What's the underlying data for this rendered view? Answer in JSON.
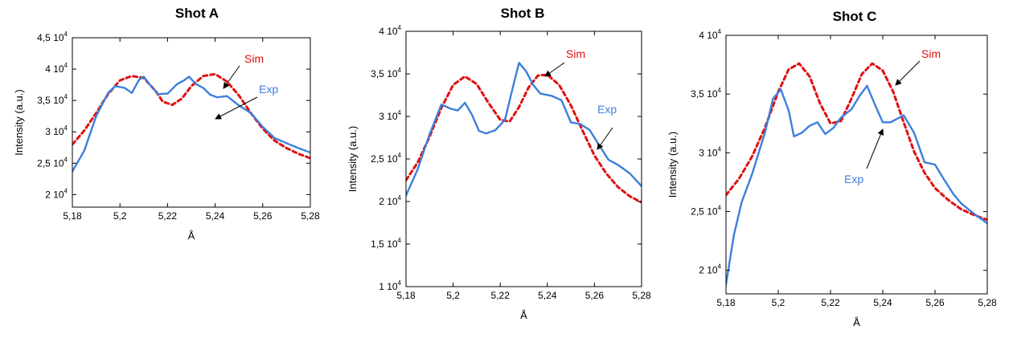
{
  "figure": {
    "colors": {
      "sim": "#e01010",
      "exp": "#3c7fdc",
      "axis": "#000000"
    }
  },
  "chart_data": [
    {
      "type": "line",
      "title": "Shot A",
      "xlabel": "Å",
      "ylabel": "Intensity (a.u.)",
      "xlim": [
        5.18,
        5.28
      ],
      "ylim": [
        18000,
        45000
      ],
      "x_ticks": [
        5.18,
        5.2,
        5.22,
        5.24,
        5.26,
        5.28
      ],
      "x_tick_labels": [
        "5,18",
        "5,2",
        "5,22",
        "5,24",
        "5,26",
        "5,28"
      ],
      "y_ticks": [
        20000,
        25000,
        30000,
        35000,
        40000,
        45000
      ],
      "y_tick_labels": [
        {
          "mantissa": "2 10",
          "exp": "4"
        },
        {
          "mantissa": "2,5 10",
          "exp": "4"
        },
        {
          "mantissa": "3 10",
          "exp": "4"
        },
        {
          "mantissa": "3,5 10",
          "exp": "4"
        },
        {
          "mantissa": "4 10",
          "exp": "4"
        },
        {
          "mantissa": "4,5 10",
          "exp": "4"
        }
      ],
      "series": [
        {
          "name": "Sim",
          "style": "dashed",
          "x": [
            5.18,
            5.185,
            5.19,
            5.195,
            5.2,
            5.205,
            5.21,
            5.215,
            5.218,
            5.222,
            5.226,
            5.23,
            5.235,
            5.24,
            5.245,
            5.25,
            5.255,
            5.26,
            5.265,
            5.27,
            5.275,
            5.28
          ],
          "y": [
            28000,
            30200,
            33000,
            36000,
            38200,
            38900,
            38600,
            36500,
            34800,
            34300,
            35300,
            37300,
            38900,
            39200,
            38000,
            35800,
            33000,
            30500,
            28600,
            27400,
            26500,
            25800
          ]
        },
        {
          "name": "Exp",
          "style": "solid",
          "x": [
            5.18,
            5.185,
            5.19,
            5.195,
            5.198,
            5.202,
            5.205,
            5.208,
            5.21,
            5.213,
            5.216,
            5.22,
            5.224,
            5.227,
            5.229,
            5.232,
            5.235,
            5.238,
            5.241,
            5.245,
            5.25,
            5.255,
            5.26,
            5.265,
            5.27,
            5.275,
            5.28
          ],
          "y": [
            23700,
            27000,
            32500,
            36200,
            37300,
            37000,
            36200,
            38300,
            38800,
            37300,
            36000,
            36100,
            37600,
            38200,
            38800,
            37600,
            37000,
            35900,
            35500,
            35700,
            34200,
            33000,
            30800,
            29000,
            28200,
            27400,
            26700
          ]
        }
      ],
      "annotations": [
        {
          "text": "Sim",
          "series": "Sim",
          "point": [
            5.244,
            37600
          ]
        },
        {
          "text": "Exp",
          "series": "Exp",
          "point": [
            5.243,
            35600
          ]
        }
      ]
    },
    {
      "type": "line",
      "title": "Shot B",
      "xlabel": "Å",
      "ylabel": "Intensity (a.u.)",
      "xlim": [
        5.18,
        5.28
      ],
      "ylim": [
        10000,
        40000
      ],
      "x_ticks": [
        5.18,
        5.2,
        5.22,
        5.24,
        5.26,
        5.28
      ],
      "x_tick_labels": [
        "5,18",
        "5,2",
        "5,22",
        "5,24",
        "5,26",
        "5,28"
      ],
      "y_ticks": [
        10000,
        15000,
        20000,
        25000,
        30000,
        35000,
        40000
      ],
      "y_tick_labels": [
        {
          "mantissa": "1 10",
          "exp": "4"
        },
        {
          "mantissa": "1,5 10",
          "exp": "4"
        },
        {
          "mantissa": "2 10",
          "exp": "4"
        },
        {
          "mantissa": "2,5 10",
          "exp": "4"
        },
        {
          "mantissa": "3 10",
          "exp": "4"
        },
        {
          "mantissa": "3,5 10",
          "exp": "4"
        },
        {
          "mantissa": "4 10",
          "exp": "4"
        }
      ],
      "series": [
        {
          "name": "Sim",
          "style": "dashed",
          "x": [
            5.18,
            5.185,
            5.19,
            5.195,
            5.2,
            5.205,
            5.21,
            5.215,
            5.22,
            5.224,
            5.228,
            5.232,
            5.236,
            5.24,
            5.245,
            5.25,
            5.255,
            5.26,
            5.265,
            5.27,
            5.275,
            5.28
          ],
          "y": [
            22500,
            24600,
            27600,
            31000,
            33700,
            34700,
            33800,
            31600,
            29600,
            29400,
            31100,
            33400,
            34800,
            34900,
            33700,
            31300,
            28300,
            25400,
            23300,
            21700,
            20600,
            19900
          ]
        },
        {
          "name": "Exp",
          "style": "solid",
          "x": [
            5.18,
            5.185,
            5.19,
            5.195,
            5.199,
            5.202,
            5.205,
            5.208,
            5.211,
            5.214,
            5.218,
            5.222,
            5.225,
            5.228,
            5.231,
            5.234,
            5.237,
            5.242,
            5.246,
            5.25,
            5.254,
            5.258,
            5.262,
            5.266,
            5.27,
            5.275,
            5.28
          ],
          "y": [
            20700,
            23800,
            27900,
            31400,
            30900,
            30700,
            31600,
            30200,
            28300,
            28000,
            28400,
            29600,
            33000,
            36300,
            35300,
            33700,
            32700,
            32400,
            31900,
            29300,
            29100,
            28400,
            26600,
            24900,
            24300,
            23300,
            21800
          ]
        }
      ],
      "annotations": [
        {
          "text": "Sim",
          "series": "Sim",
          "point": [
            5.236,
            34500
          ]
        },
        {
          "text": "Exp",
          "series": "Exp",
          "point": [
            5.265,
            25000
          ]
        }
      ]
    },
    {
      "type": "line",
      "title": "Shot C",
      "xlabel": "Å",
      "ylabel": "Intensity (a.u.)",
      "xlim": [
        5.18,
        5.28
      ],
      "ylim": [
        18000,
        40000
      ],
      "x_ticks": [
        5.18,
        5.2,
        5.22,
        5.24,
        5.26,
        5.28
      ],
      "x_tick_labels": [
        "5,18",
        "5,2",
        "5,22",
        "5,24",
        "5,26",
        "5,28"
      ],
      "y_ticks": [
        20000,
        25000,
        30000,
        35000,
        40000
      ],
      "y_tick_labels": [
        {
          "mantissa": "2 10",
          "exp": "4"
        },
        {
          "mantissa": "2,5 10",
          "exp": "4"
        },
        {
          "mantissa": "3 10",
          "exp": "4"
        },
        {
          "mantissa": "3,5 10",
          "exp": "4"
        },
        {
          "mantissa": "4 10",
          "exp": "4"
        }
      ],
      "series": [
        {
          "name": "Sim",
          "style": "dashed",
          "x": [
            5.18,
            5.185,
            5.19,
            5.195,
            5.2,
            5.204,
            5.208,
            5.212,
            5.216,
            5.22,
            5.224,
            5.228,
            5.232,
            5.236,
            5.24,
            5.244,
            5.248,
            5.252,
            5.256,
            5.26,
            5.265,
            5.27,
            5.275,
            5.28
          ],
          "y": [
            26400,
            27800,
            29700,
            32200,
            35200,
            37100,
            37600,
            36500,
            34200,
            32500,
            32700,
            34600,
            36700,
            37600,
            37000,
            35200,
            32600,
            30100,
            28300,
            27000,
            26000,
            25200,
            24700,
            24300
          ]
        },
        {
          "name": "Exp",
          "style": "solid",
          "x": [
            5.18,
            5.183,
            5.186,
            5.19,
            5.195,
            5.198,
            5.201,
            5.204,
            5.206,
            5.209,
            5.212,
            5.215,
            5.218,
            5.221,
            5.224,
            5.228,
            5.231,
            5.234,
            5.237,
            5.24,
            5.243,
            5.248,
            5.252,
            5.256,
            5.26,
            5.263,
            5.267,
            5.27,
            5.275,
            5.28
          ],
          "y": [
            18800,
            23000,
            25800,
            28200,
            31800,
            34600,
            35400,
            33600,
            31400,
            31700,
            32300,
            32600,
            31600,
            32100,
            33000,
            33700,
            34800,
            35700,
            34100,
            32600,
            32600,
            33200,
            31700,
            29200,
            29000,
            27900,
            26500,
            25700,
            24800,
            24000
          ]
        }
      ],
      "annotations": [
        {
          "text": "Sim",
          "series": "Sim",
          "point": [
            5.238,
            35800
          ]
        },
        {
          "text": "Exp",
          "series": "Exp",
          "point": [
            5.239,
            32700
          ]
        }
      ]
    }
  ]
}
